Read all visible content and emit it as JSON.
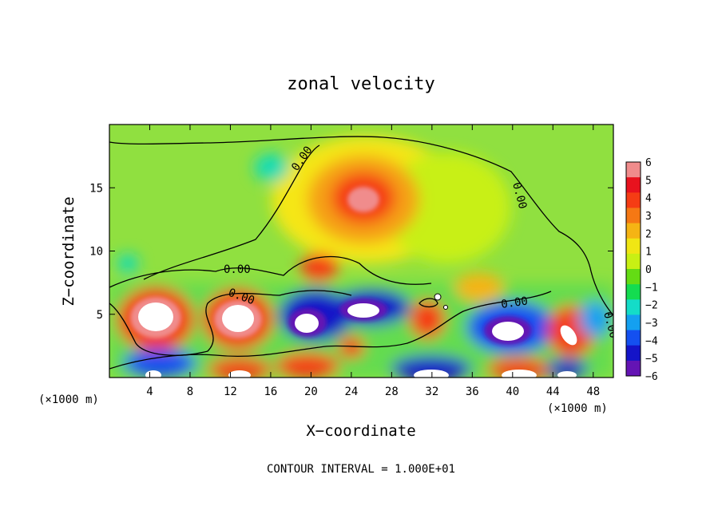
{
  "chart_data": {
    "type": "heatmap",
    "title": "zonal velocity",
    "xlabel": "X−coordinate",
    "ylabel": "Z−coordinate",
    "x_unit_left": "(×1000 m)",
    "x_unit_right": "(×1000 m)",
    "xlim": [
      0,
      50
    ],
    "ylim": [
      0,
      20
    ],
    "x_ticks": [
      4,
      8,
      12,
      16,
      20,
      24,
      28,
      32,
      36,
      40,
      44,
      48
    ],
    "y_ticks": [
      5,
      10,
      15
    ],
    "colorbar": {
      "ticks": [
        "6",
        "5",
        "4",
        "3",
        "2",
        "1",
        "0",
        "−1",
        "−2",
        "−3",
        "−4",
        "−5",
        "−6"
      ],
      "colors": [
        "#f08c8c",
        "#e8121e",
        "#f53c14",
        "#f57814",
        "#f5b414",
        "#f0e614",
        "#c8f014",
        "#64dc14",
        "#14dc50",
        "#14dcc8",
        "#14a0f0",
        "#1450f0",
        "#1414c8",
        "#6414b4"
      ]
    },
    "contour_label": "0.00",
    "features": [
      {
        "x": 26.0,
        "z": 13.7,
        "value": 5,
        "note": "jet core"
      },
      {
        "x": 5.0,
        "z": 5.0,
        "value": 6
      },
      {
        "x": 13.0,
        "z": 4.5,
        "value": 6
      },
      {
        "x": 19.5,
        "z": 4.5,
        "value": -6
      },
      {
        "x": 25.0,
        "z": 5.2,
        "value": -6
      },
      {
        "x": 40.0,
        "z": 3.8,
        "value": -6
      },
      {
        "x": 21.0,
        "z": 8.5,
        "value": 4
      },
      {
        "x": 47.0,
        "z": 3.8,
        "value": 5
      }
    ],
    "footer": "CONTOUR INTERVAL = 1.000E+01"
  }
}
